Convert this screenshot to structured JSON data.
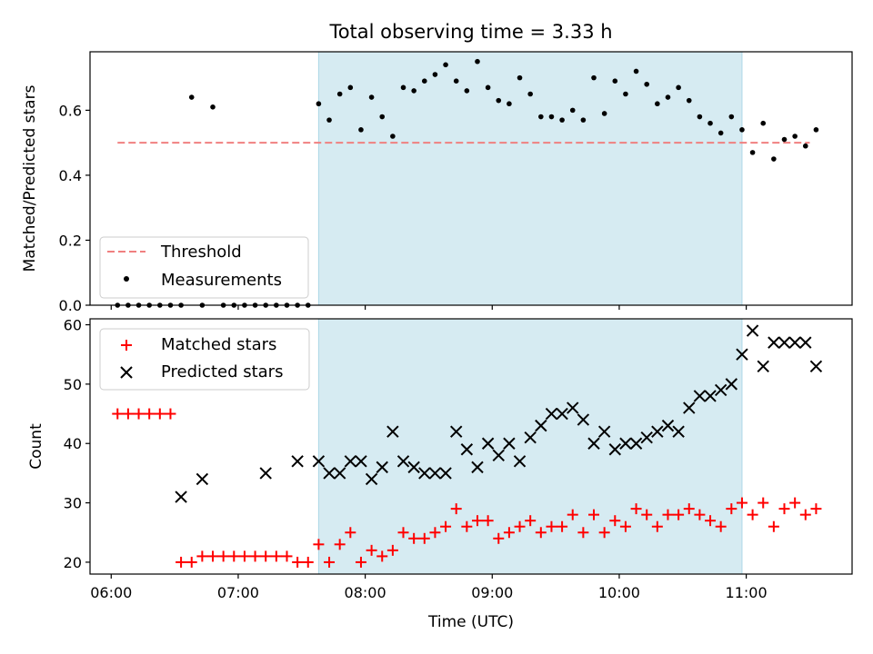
{
  "chart_data": [
    {
      "type": "scatter",
      "title": "Total observing time = 3.33 h",
      "ylabel": "Matched/Predicted stars",
      "xlabel": "",
      "xlim": [
        "05:50",
        "11:50"
      ],
      "ylim": [
        0,
        0.78
      ],
      "yticks": [
        "0.0",
        "0.2",
        "0.4",
        "0.6"
      ],
      "shaded_region": {
        "x0": "07:38",
        "x1": "10:58",
        "color": "#add8e6"
      },
      "legend": "lower-left",
      "grid": false,
      "series": [
        {
          "name": "Threshold",
          "kind": "dashed-line",
          "color": "#f08080",
          "x": [
            "06:03",
            "11:30"
          ],
          "y": [
            0.5,
            0.5
          ]
        },
        {
          "name": "Measurements",
          "kind": "dots",
          "color": "#000000",
          "x": [
            "06:03",
            "06:08",
            "06:13",
            "06:18",
            "06:23",
            "06:28",
            "06:33",
            "06:38",
            "06:43",
            "06:48",
            "06:53",
            "06:58",
            "07:03",
            "07:08",
            "07:13",
            "07:18",
            "07:23",
            "07:28",
            "07:33",
            "07:38",
            "07:43",
            "07:48",
            "07:53",
            "07:58",
            "08:03",
            "08:08",
            "08:13",
            "08:18",
            "08:23",
            "08:28",
            "08:33",
            "08:38",
            "08:43",
            "08:48",
            "08:53",
            "08:58",
            "09:03",
            "09:08",
            "09:13",
            "09:18",
            "09:23",
            "09:28",
            "09:33",
            "09:38",
            "09:43",
            "09:48",
            "09:53",
            "09:58",
            "10:03",
            "10:08",
            "10:13",
            "10:18",
            "10:23",
            "10:28",
            "10:33",
            "10:38",
            "10:43",
            "10:48",
            "10:53",
            "10:58",
            "11:03",
            "11:08",
            "11:13",
            "11:18",
            "11:23",
            "11:28",
            "11:33"
          ],
          "y": [
            0,
            0,
            0,
            0,
            0,
            0,
            0,
            0.64,
            0,
            0.61,
            0,
            0,
            0,
            0,
            0,
            0,
            0,
            0,
            0,
            0.62,
            0.57,
            0.65,
            0.67,
            0.54,
            0.64,
            0.58,
            0.52,
            0.67,
            0.66,
            0.69,
            0.71,
            0.74,
            0.69,
            0.66,
            0.75,
            0.67,
            0.63,
            0.62,
            0.7,
            0.65,
            0.58,
            0.58,
            0.57,
            0.6,
            0.57,
            0.7,
            0.59,
            0.69,
            0.65,
            0.72,
            0.68,
            0.62,
            0.64,
            0.67,
            0.63,
            0.58,
            0.56,
            0.53,
            0.58,
            0.54,
            0.47,
            0.56,
            0.45,
            0.51,
            0.52,
            0.49,
            0.54
          ]
        }
      ]
    },
    {
      "type": "scatter",
      "title": "",
      "ylabel": "Count",
      "xlabel": "Time (UTC)",
      "xlim": [
        "05:50",
        "11:50"
      ],
      "ylim": [
        18,
        61
      ],
      "yticks": [
        "20",
        "30",
        "40",
        "50",
        "60"
      ],
      "xticks": [
        "06:00",
        "07:00",
        "08:00",
        "09:00",
        "10:00",
        "11:00"
      ],
      "shaded_region": {
        "x0": "07:38",
        "x1": "10:58",
        "color": "#add8e6"
      },
      "legend": "top-left",
      "grid": false,
      "series": [
        {
          "name": "Matched stars",
          "kind": "plus",
          "color": "#ff0000",
          "x": [
            "06:03",
            "06:08",
            "06:13",
            "06:18",
            "06:23",
            "06:28",
            "06:33",
            "06:38",
            "06:43",
            "06:48",
            "06:53",
            "06:58",
            "07:03",
            "07:08",
            "07:13",
            "07:18",
            "07:23",
            "07:28",
            "07:33",
            "07:38",
            "07:43",
            "07:48",
            "07:53",
            "07:58",
            "08:03",
            "08:08",
            "08:13",
            "08:18",
            "08:23",
            "08:28",
            "08:33",
            "08:38",
            "08:43",
            "08:48",
            "08:53",
            "08:58",
            "09:03",
            "09:08",
            "09:13",
            "09:18",
            "09:23",
            "09:28",
            "09:33",
            "09:38",
            "09:43",
            "09:48",
            "09:53",
            "09:58",
            "10:03",
            "10:08",
            "10:13",
            "10:18",
            "10:23",
            "10:28",
            "10:33",
            "10:38",
            "10:43",
            "10:48",
            "10:53",
            "10:58",
            "11:03",
            "11:08",
            "11:13",
            "11:18",
            "11:23",
            "11:28",
            "11:33"
          ],
          "y": [
            45,
            45,
            45,
            45,
            45,
            45,
            20,
            20,
            21,
            21,
            21,
            21,
            21,
            21,
            21,
            21,
            21,
            20,
            20,
            23,
            20,
            23,
            25,
            20,
            22,
            21,
            22,
            25,
            24,
            24,
            25,
            26,
            29,
            26,
            27,
            27,
            24,
            25,
            26,
            27,
            25,
            26,
            26,
            28,
            25,
            28,
            25,
            27,
            26,
            29,
            28,
            26,
            28,
            28,
            29,
            28,
            27,
            26,
            29,
            30,
            28,
            30,
            26,
            29,
            30,
            28,
            29
          ]
        },
        {
          "name": "Predicted stars",
          "kind": "cross",
          "color": "#000000",
          "x": [
            "06:33",
            "06:43",
            "07:13",
            "07:28",
            "07:38",
            "07:43",
            "07:48",
            "07:53",
            "07:58",
            "08:03",
            "08:08",
            "08:13",
            "08:18",
            "08:23",
            "08:28",
            "08:33",
            "08:38",
            "08:43",
            "08:48",
            "08:53",
            "08:58",
            "09:03",
            "09:08",
            "09:13",
            "09:18",
            "09:23",
            "09:28",
            "09:33",
            "09:38",
            "09:43",
            "09:48",
            "09:53",
            "09:58",
            "10:03",
            "10:08",
            "10:13",
            "10:18",
            "10:23",
            "10:28",
            "10:33",
            "10:38",
            "10:43",
            "10:48",
            "10:53",
            "10:58",
            "11:03",
            "11:08",
            "11:13",
            "11:18",
            "11:23",
            "11:28",
            "11:33"
          ],
          "y": [
            31,
            34,
            35,
            37,
            37,
            35,
            35,
            37,
            37,
            34,
            36,
            42,
            37,
            36,
            35,
            35,
            35,
            42,
            39,
            36,
            40,
            38,
            40,
            37,
            41,
            43,
            45,
            45,
            46,
            44,
            40,
            42,
            39,
            40,
            40,
            41,
            42,
            43,
            42,
            46,
            48,
            48,
            49,
            50,
            55,
            59,
            53,
            57,
            57,
            57,
            57,
            53
          ]
        }
      ]
    }
  ]
}
